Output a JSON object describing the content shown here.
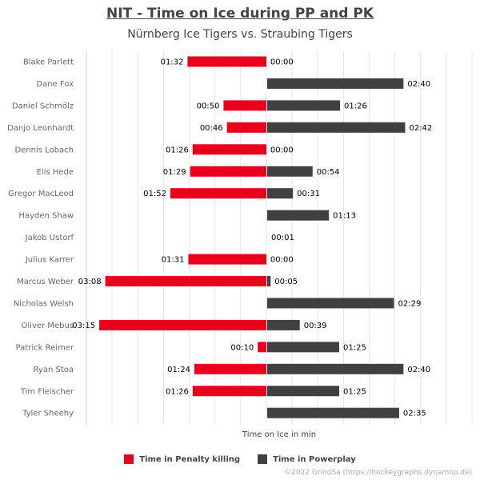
{
  "colors": {
    "pk": "#E8001C",
    "pp": "#404040",
    "grid": "#e6e6e6",
    "axis": "#cccccc"
  },
  "chart_data": {
    "type": "bar",
    "orientation": "horizontal-diverging",
    "title": "NIT - Time on Ice during PP and PK",
    "subtitle": "Nürnberg Ice Tigers vs. Straubing Tigers",
    "xlabel": "Time on Ice in min",
    "xlim": [
      -3.5,
      4.0
    ],
    "grid": true,
    "legend_position": "bottom",
    "categories": [
      "Blake Parlett",
      "Dane Fox",
      "Daniel Schmölz",
      "Danjo Leonhardt",
      "Dennis Lobach",
      "Elis Hede",
      "Gregor MacLeod",
      "Hayden Shaw",
      "Jakob Ustorf",
      "Julius Karrer",
      "Marcus Weber",
      "Nicholas Welsh",
      "Oliver Mebus",
      "Patrick Reimer",
      "Ryan Stoa",
      "Tim Fleischer",
      "Tyler Sheehy"
    ],
    "series": [
      {
        "name": "Time in Penalty killing",
        "values": [
          1.533,
          null,
          0.833,
          0.767,
          1.433,
          1.483,
          1.867,
          null,
          null,
          1.517,
          3.133,
          null,
          3.25,
          0.167,
          1.4,
          1.433,
          null
        ],
        "labels": [
          "01:32",
          "",
          "00:50",
          "00:46",
          "01:26",
          "01:29",
          "01:52",
          "",
          "",
          "01:31",
          "03:08",
          "",
          "03:15",
          "00:10",
          "01:24",
          "01:26",
          ""
        ]
      },
      {
        "name": "Time in Powerplay",
        "values": [
          0,
          2.667,
          1.433,
          2.7,
          0,
          0.9,
          0.517,
          1.217,
          0.017,
          0,
          0.083,
          2.483,
          0.65,
          1.417,
          2.667,
          1.417,
          2.583
        ],
        "labels": [
          "00:00",
          "02:40",
          "01:26",
          "02:42",
          "00:00",
          "00:54",
          "00:31",
          "01:13",
          "00:01",
          "00:00",
          "00:05",
          "02:29",
          "00:39",
          "01:25",
          "02:40",
          "01:25",
          "02:35"
        ]
      }
    ]
  },
  "credit": "©2022 GrindSa (https://hockeygraphs.dynamop.de)"
}
